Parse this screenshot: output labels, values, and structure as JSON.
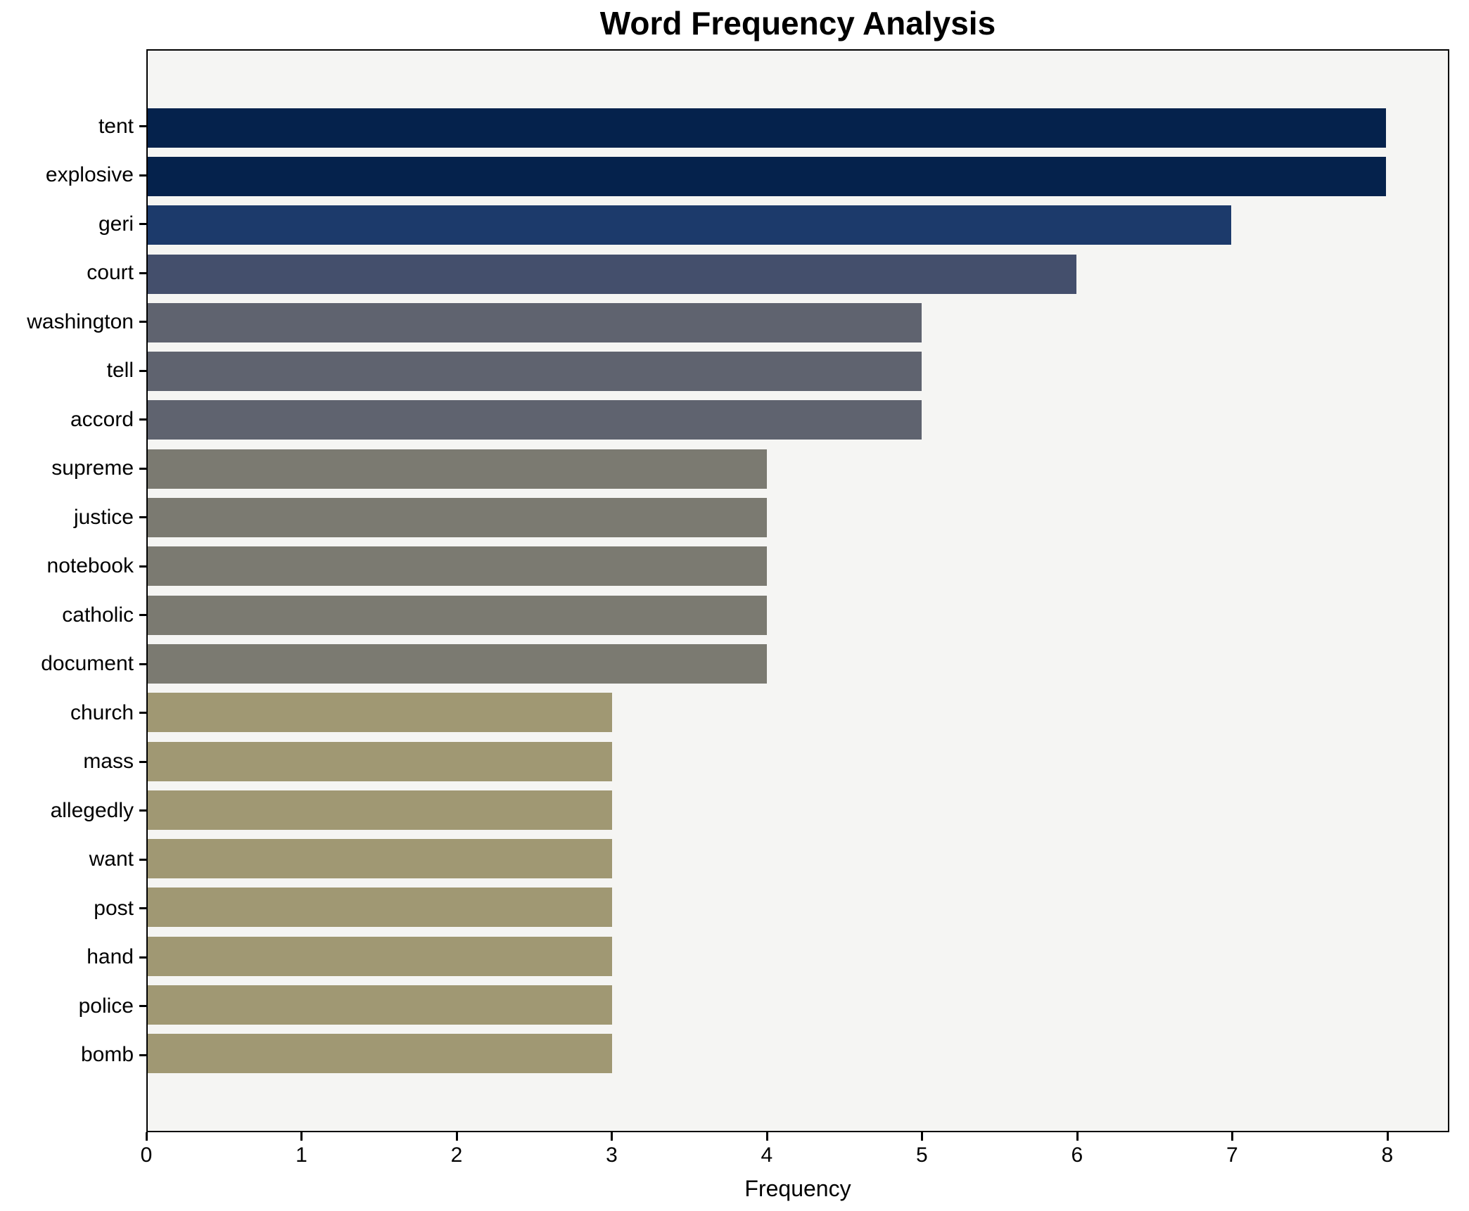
{
  "title": "Word Frequency Analysis",
  "chart_data": {
    "type": "bar",
    "orientation": "horizontal",
    "title": "Word Frequency Analysis",
    "xlabel": "Frequency",
    "ylabel": "",
    "xlim": [
      0,
      8.4
    ],
    "x_ticks": [
      0,
      1,
      2,
      3,
      4,
      5,
      6,
      7,
      8
    ],
    "grid": false,
    "legend": false,
    "categories": [
      "tent",
      "explosive",
      "geri",
      "court",
      "washington",
      "tell",
      "accord",
      "supreme",
      "justice",
      "notebook",
      "catholic",
      "document",
      "church",
      "mass",
      "allegedly",
      "want",
      "post",
      "hand",
      "police",
      "bomb"
    ],
    "values": [
      8,
      8,
      7,
      6,
      5,
      5,
      5,
      4,
      4,
      4,
      4,
      4,
      3,
      3,
      3,
      3,
      3,
      3,
      3,
      3
    ],
    "bar_colors": [
      "#05224c",
      "#05224c",
      "#1c3a6b",
      "#444f6c",
      "#5f636f",
      "#5f636f",
      "#5f636f",
      "#7b7a71",
      "#7b7a71",
      "#7b7a71",
      "#7b7a71",
      "#7b7a71",
      "#a09873",
      "#a09873",
      "#a09873",
      "#a09873",
      "#a09873",
      "#a09873",
      "#a09873",
      "#a09873"
    ]
  },
  "colors": {
    "figure_bg": "#ffffff",
    "plot_bg": "#f5f5f3",
    "spine": "#000000",
    "text": "#000000"
  }
}
